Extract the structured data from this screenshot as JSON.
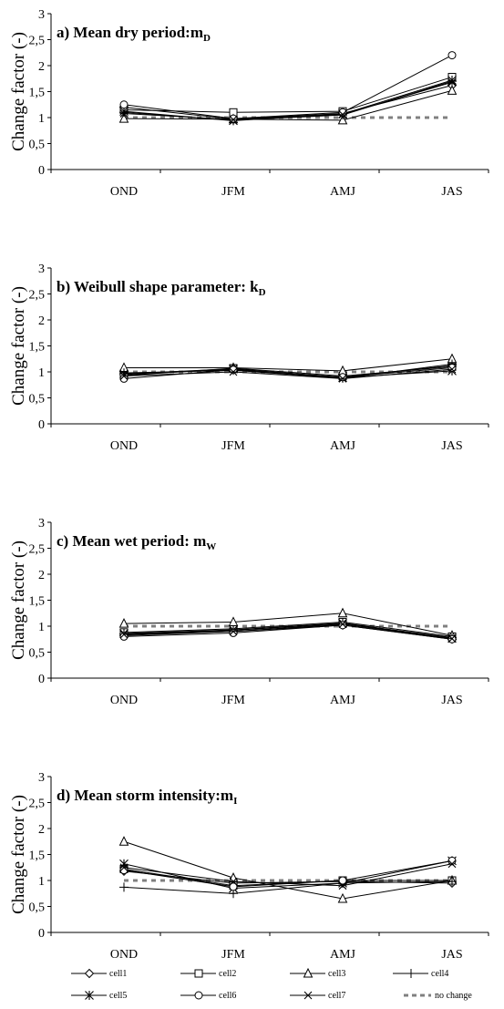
{
  "chart_data": [
    {
      "type": "line",
      "title": "a) Mean dry period:m",
      "title_subscript": "D",
      "ylabel": "Change factor (-)",
      "categories": [
        "OND",
        "JFM",
        "AMJ",
        "JAS"
      ],
      "ylim": [
        0,
        3
      ],
      "yticks": [
        "0",
        "0,5",
        "1",
        "1,5",
        "2",
        "2,5",
        "3"
      ],
      "series": [
        {
          "name": "cell1",
          "values": [
            1.2,
            0.97,
            1.08,
            1.62
          ]
        },
        {
          "name": "cell2",
          "values": [
            1.15,
            1.1,
            1.12,
            1.78
          ]
        },
        {
          "name": "cell3",
          "values": [
            0.98,
            0.97,
            0.95,
            1.52
          ]
        },
        {
          "name": "cell4",
          "values": [
            1.1,
            0.95,
            1.05,
            1.7
          ]
        },
        {
          "name": "cell5",
          "values": [
            1.12,
            0.94,
            1.07,
            1.72
          ]
        },
        {
          "name": "cell6",
          "values": [
            1.25,
            0.98,
            1.1,
            2.2
          ]
        },
        {
          "name": "cell7",
          "values": [
            1.08,
            0.96,
            1.06,
            1.68
          ]
        },
        {
          "name": "no change",
          "values": [
            1,
            1,
            1,
            1
          ]
        }
      ]
    },
    {
      "type": "line",
      "title": "b) Weibull shape parameter: k",
      "title_subscript": "D",
      "ylabel": "Change factor (-)",
      "categories": [
        "OND",
        "JFM",
        "AMJ",
        "JAS"
      ],
      "ylim": [
        0,
        3
      ],
      "yticks": [
        "0",
        "0,5",
        "1",
        "1,5",
        "2",
        "2,5",
        "3"
      ],
      "series": [
        {
          "name": "cell1",
          "values": [
            0.95,
            1.05,
            0.9,
            1.12
          ]
        },
        {
          "name": "cell2",
          "values": [
            0.93,
            1.07,
            0.92,
            1.1
          ]
        },
        {
          "name": "cell3",
          "values": [
            1.08,
            1.08,
            1.02,
            1.25
          ]
        },
        {
          "name": "cell4",
          "values": [
            0.98,
            1.03,
            0.88,
            1.15
          ]
        },
        {
          "name": "cell5",
          "values": [
            0.96,
            1.06,
            0.89,
            1.02
          ]
        },
        {
          "name": "cell6",
          "values": [
            0.87,
            1.04,
            0.9,
            1.08
          ]
        },
        {
          "name": "cell7",
          "values": [
            0.92,
            1.0,
            0.87,
            1.05
          ]
        },
        {
          "name": "no change",
          "values": [
            1,
            1,
            1,
            1
          ]
        }
      ]
    },
    {
      "type": "line",
      "title": "c) Mean wet period: m",
      "title_subscript": "W",
      "ylabel": "Change factor (-)",
      "categories": [
        "OND",
        "JFM",
        "AMJ",
        "JAS"
      ],
      "ylim": [
        0,
        3
      ],
      "yticks": [
        "0",
        "0,5",
        "1",
        "1,5",
        "2",
        "2,5",
        "3"
      ],
      "series": [
        {
          "name": "cell1",
          "values": [
            0.85,
            0.92,
            1.05,
            0.78
          ]
        },
        {
          "name": "cell2",
          "values": [
            0.88,
            0.95,
            1.08,
            0.8
          ]
        },
        {
          "name": "cell3",
          "values": [
            1.05,
            1.08,
            1.25,
            0.82
          ]
        },
        {
          "name": "cell4",
          "values": [
            0.82,
            0.9,
            1.02,
            0.75
          ]
        },
        {
          "name": "cell5",
          "values": [
            0.86,
            0.93,
            1.06,
            0.77
          ]
        },
        {
          "name": "cell6",
          "values": [
            0.8,
            0.87,
            1.02,
            0.75
          ]
        },
        {
          "name": "cell7",
          "values": [
            0.84,
            0.9,
            1.04,
            0.76
          ]
        },
        {
          "name": "no change",
          "values": [
            1,
            1,
            1,
            1
          ]
        }
      ]
    },
    {
      "type": "line",
      "title": "d) Mean storm intensity:m",
      "title_subscript": "I",
      "ylabel": "Change factor (-)",
      "categories": [
        "OND",
        "JFM",
        "AMJ",
        "JAS"
      ],
      "ylim": [
        0,
        3
      ],
      "yticks": [
        "0",
        "0,5",
        "1",
        "1,5",
        "2",
        "2,5",
        "3"
      ],
      "series": [
        {
          "name": "cell1",
          "values": [
            1.18,
            0.95,
            0.98,
            0.95
          ]
        },
        {
          "name": "cell2",
          "values": [
            1.22,
            0.9,
            1.0,
            1.0
          ]
        },
        {
          "name": "cell3",
          "values": [
            1.75,
            1.05,
            0.65,
            1.0
          ]
        },
        {
          "name": "cell4",
          "values": [
            0.87,
            0.75,
            0.95,
            0.98
          ]
        },
        {
          "name": "cell5",
          "values": [
            1.32,
            0.85,
            0.95,
            1.38
          ]
        },
        {
          "name": "cell6",
          "values": [
            1.2,
            0.88,
            1.0,
            1.38
          ]
        },
        {
          "name": "cell7",
          "values": [
            1.25,
            0.98,
            0.9,
            1.32
          ]
        },
        {
          "name": "no change",
          "values": [
            1,
            1,
            1,
            1
          ]
        }
      ]
    }
  ],
  "legend": {
    "position": "bottom",
    "items": [
      {
        "name": "cell1",
        "marker": "diamond"
      },
      {
        "name": "cell2",
        "marker": "square"
      },
      {
        "name": "cell3",
        "marker": "triangle"
      },
      {
        "name": "cell4",
        "marker": "plus"
      },
      {
        "name": "cell5",
        "marker": "star"
      },
      {
        "name": "cell6",
        "marker": "circle"
      },
      {
        "name": "cell7",
        "marker": "cross"
      },
      {
        "name": "no change",
        "marker": "dashed"
      }
    ]
  },
  "colors": {
    "line": "#000000",
    "reference_line": "#808080"
  }
}
